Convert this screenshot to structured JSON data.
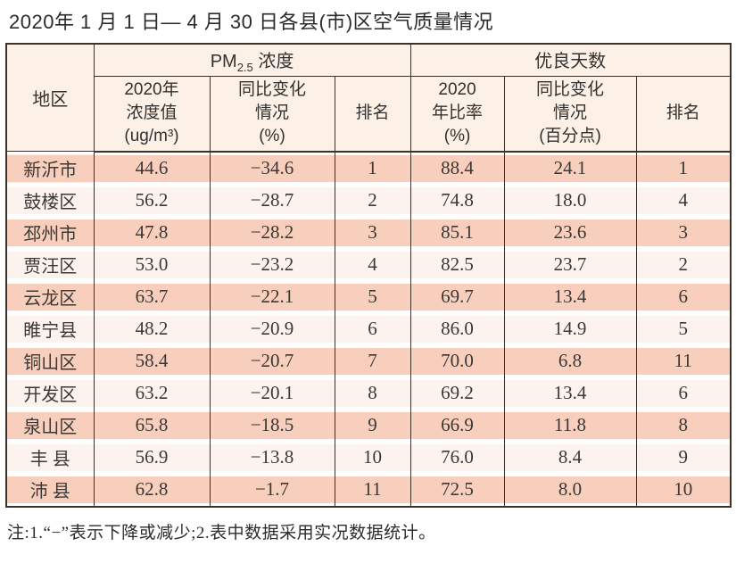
{
  "page": {
    "title": "2020年 1 月 1 日— 4 月 30 日各县(市)区空气质量情况",
    "footnote": "注:1.“−”表示下降或减少;2.表中数据采用实况数据统计。"
  },
  "table": {
    "region_header": "地区",
    "groups": [
      {
        "prefix": "PM",
        "sub": "2.5",
        "suffix": " 浓度"
      },
      {
        "prefix": "优良天数",
        "sub": "",
        "suffix": ""
      }
    ],
    "subheaders": [
      [
        "2020年",
        "浓度值",
        "(ug/m³)"
      ],
      [
        "同比变化",
        "情况",
        "(%)"
      ],
      [
        "排名"
      ],
      [
        "2020",
        "年比率",
        "(%)"
      ],
      [
        "同比变化",
        "情况",
        "(百分点)"
      ],
      [
        "排名"
      ]
    ],
    "rows": [
      [
        "新沂市",
        "44.6",
        "−34.6",
        "1",
        "88.4",
        "24.1",
        "1"
      ],
      [
        "鼓楼区",
        "56.2",
        "−28.7",
        "2",
        "74.8",
        "18.0",
        "4"
      ],
      [
        "邳州市",
        "47.8",
        "−28.2",
        "3",
        "85.1",
        "23.6",
        "3"
      ],
      [
        "贾汪区",
        "53.0",
        "−23.2",
        "4",
        "82.5",
        "23.7",
        "2"
      ],
      [
        "云龙区",
        "63.7",
        "−22.1",
        "5",
        "69.7",
        "13.4",
        "6"
      ],
      [
        "睢宁县",
        "48.2",
        "−20.9",
        "6",
        "86.0",
        "14.9",
        "5"
      ],
      [
        "铜山区",
        "58.4",
        "−20.7",
        "7",
        "70.0",
        "6.8",
        "11"
      ],
      [
        "开发区",
        "63.2",
        "−20.1",
        "8",
        "69.2",
        "13.4",
        "6"
      ],
      [
        "泉山区",
        "65.8",
        "−18.5",
        "9",
        "66.9",
        "11.8",
        "8"
      ],
      [
        "丰 县",
        "56.9",
        "−13.8",
        "10",
        "76.0",
        "8.4",
        "9"
      ],
      [
        "沛 县",
        "62.8",
        "−1.7",
        "11",
        "72.5",
        "8.0",
        "10"
      ]
    ]
  },
  "colors": {
    "border": "#3a332c",
    "header_bg": "#fdf1e7",
    "row_dark": "#f8cebd",
    "row_light": "#fdf3ee"
  }
}
